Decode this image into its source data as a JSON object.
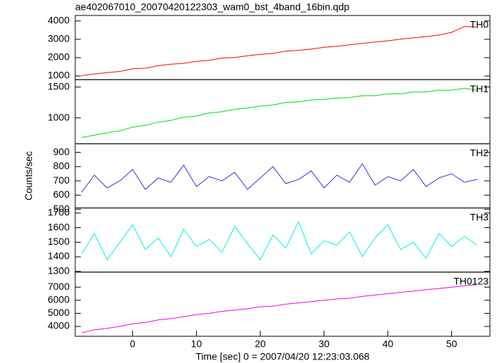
{
  "chart_data": [
    {
      "type": "line",
      "title": "ae402067010_20070420122303_wam0_bst_4band_16bin.qdp",
      "label": "TH0",
      "color": "#ff0000",
      "x": [
        -8,
        -6,
        -4,
        -2,
        0,
        2,
        4,
        6,
        8,
        10,
        12,
        14,
        16,
        18,
        20,
        22,
        24,
        26,
        28,
        30,
        32,
        34,
        36,
        38,
        40,
        42,
        44,
        46,
        48,
        50,
        52,
        54
      ],
      "values": [
        1020,
        1110,
        1180,
        1250,
        1390,
        1420,
        1560,
        1640,
        1690,
        1800,
        1850,
        1980,
        2010,
        2100,
        2180,
        2230,
        2350,
        2400,
        2470,
        2560,
        2620,
        2700,
        2780,
        2850,
        2920,
        3010,
        3080,
        3150,
        3230,
        3380,
        3700,
        3650
      ],
      "xlim": [
        -9,
        56
      ],
      "ylim": [
        800,
        4300
      ],
      "yticks": [
        1000,
        2000,
        3000,
        4000
      ]
    },
    {
      "type": "line",
      "label": "TH1",
      "color": "#00dd00",
      "x": [
        -8,
        -6,
        -4,
        -2,
        0,
        2,
        4,
        6,
        8,
        10,
        12,
        14,
        16,
        18,
        20,
        22,
        24,
        26,
        28,
        30,
        32,
        34,
        36,
        38,
        40,
        42,
        44,
        46,
        48,
        50,
        52,
        54
      ],
      "values": [
        680,
        720,
        760,
        790,
        850,
        880,
        930,
        960,
        1010,
        1030,
        1080,
        1100,
        1140,
        1160,
        1190,
        1210,
        1250,
        1260,
        1290,
        1300,
        1320,
        1330,
        1360,
        1360,
        1390,
        1390,
        1420,
        1420,
        1450,
        1450,
        1480,
        1450
      ],
      "xlim": [
        -9,
        56
      ],
      "ylim": [
        580,
        1620
      ],
      "yticks": [
        1000,
        1500
      ]
    },
    {
      "type": "line",
      "label": "TH2",
      "color": "#3333dd",
      "ylabel": "Counts/sec",
      "x": [
        -8,
        -6,
        -4,
        -2,
        0,
        2,
        4,
        6,
        8,
        10,
        12,
        14,
        16,
        18,
        20,
        22,
        24,
        26,
        28,
        30,
        32,
        34,
        36,
        38,
        40,
        42,
        44,
        46,
        48,
        50,
        52,
        54
      ],
      "values": [
        620,
        740,
        650,
        700,
        780,
        640,
        720,
        690,
        810,
        660,
        730,
        700,
        760,
        640,
        720,
        800,
        680,
        710,
        770,
        650,
        740,
        690,
        820,
        670,
        730,
        700,
        780,
        660,
        720,
        750,
        690,
        710
      ],
      "xlim": [
        -9,
        56
      ],
      "ylim": [
        510,
        960
      ],
      "yticks": [
        500,
        600,
        700,
        800,
        900
      ]
    },
    {
      "type": "line",
      "label": "TH3",
      "color": "#00eeee",
      "x": [
        -8,
        -6,
        -4,
        -2,
        0,
        2,
        4,
        6,
        8,
        10,
        12,
        14,
        16,
        18,
        20,
        22,
        24,
        26,
        28,
        30,
        32,
        34,
        36,
        38,
        40,
        42,
        44,
        46,
        48,
        50,
        52,
        54
      ],
      "values": [
        1420,
        1560,
        1380,
        1500,
        1620,
        1450,
        1530,
        1400,
        1590,
        1470,
        1520,
        1430,
        1610,
        1490,
        1380,
        1550,
        1460,
        1640,
        1420,
        1510,
        1480,
        1570,
        1400,
        1530,
        1620,
        1450,
        1500,
        1390,
        1560,
        1470,
        1540,
        1480
      ],
      "xlim": [
        -9,
        56
      ],
      "ylim": [
        1295,
        1735
      ],
      "yticks": [
        1300,
        1400,
        1500,
        1600,
        1700
      ]
    },
    {
      "type": "line",
      "label": "TH0123",
      "color": "#ee00ee",
      "xlabel": "Time [sec] 0 = 2007/04/20 12:23:03.068",
      "x": [
        -8,
        -6,
        -4,
        -2,
        0,
        2,
        4,
        6,
        8,
        10,
        12,
        14,
        16,
        18,
        20,
        22,
        24,
        26,
        28,
        30,
        32,
        34,
        36,
        38,
        40,
        42,
        44,
        46,
        48,
        50,
        52,
        54
      ],
      "values": [
        3500,
        3750,
        3850,
        4000,
        4200,
        4300,
        4500,
        4600,
        4750,
        4900,
        5000,
        5150,
        5250,
        5350,
        5500,
        5550,
        5700,
        5800,
        5900,
        6000,
        6100,
        6150,
        6300,
        6400,
        6500,
        6600,
        6700,
        6800,
        6900,
        7000,
        7100,
        7200
      ],
      "xlim": [
        -9,
        56
      ],
      "ylim": [
        3250,
        8150
      ],
      "yticks": [
        4000,
        5000,
        6000,
        7000
      ],
      "xticks": [
        0,
        10,
        20,
        30,
        40,
        50
      ]
    }
  ]
}
